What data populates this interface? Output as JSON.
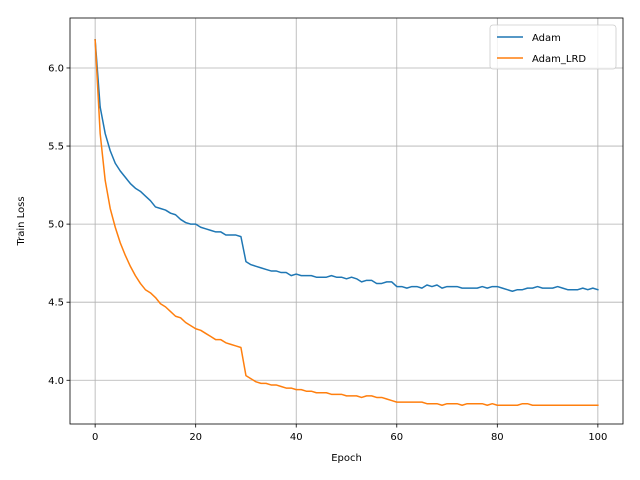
{
  "chart_data": {
    "type": "line",
    "title": "",
    "xlabel": "Epoch",
    "ylabel": "Train Loss",
    "xlim": [
      -5,
      105
    ],
    "ylim": [
      3.72,
      6.32
    ],
    "xticks": [
      0,
      20,
      40,
      60,
      80,
      100
    ],
    "xtick_labels": [
      "0",
      "20",
      "40",
      "60",
      "80",
      "100"
    ],
    "yticks": [
      4.0,
      4.5,
      5.0,
      5.5,
      6.0
    ],
    "ytick_labels": [
      "4.0",
      "4.5",
      "5.0",
      "5.5",
      "6.0"
    ],
    "grid": true,
    "legend_position": "top-right",
    "series": [
      {
        "name": "Adam",
        "color": "#1f77b4",
        "x": [
          0,
          1,
          2,
          3,
          4,
          5,
          6,
          7,
          8,
          9,
          10,
          11,
          12,
          13,
          14,
          15,
          16,
          17,
          18,
          19,
          20,
          21,
          22,
          23,
          24,
          25,
          26,
          27,
          28,
          29,
          30,
          31,
          32,
          33,
          34,
          35,
          36,
          37,
          38,
          39,
          40,
          41,
          42,
          43,
          44,
          45,
          46,
          47,
          48,
          49,
          50,
          51,
          52,
          53,
          54,
          55,
          56,
          57,
          58,
          59,
          60,
          61,
          62,
          63,
          64,
          65,
          66,
          67,
          68,
          69,
          70,
          71,
          72,
          73,
          74,
          75,
          76,
          77,
          78,
          79,
          80,
          81,
          82,
          83,
          84,
          85,
          86,
          87,
          88,
          89,
          90,
          91,
          92,
          93,
          94,
          95,
          96,
          97,
          98,
          99,
          100
        ],
        "y": [
          6.18,
          5.75,
          5.58,
          5.47,
          5.39,
          5.34,
          5.3,
          5.26,
          5.23,
          5.21,
          5.18,
          5.15,
          5.11,
          5.1,
          5.09,
          5.07,
          5.06,
          5.03,
          5.01,
          5.0,
          5.0,
          4.98,
          4.97,
          4.96,
          4.95,
          4.95,
          4.93,
          4.93,
          4.93,
          4.92,
          4.76,
          4.74,
          4.73,
          4.72,
          4.71,
          4.7,
          4.7,
          4.69,
          4.69,
          4.67,
          4.68,
          4.67,
          4.67,
          4.67,
          4.66,
          4.66,
          4.66,
          4.67,
          4.66,
          4.66,
          4.65,
          4.66,
          4.65,
          4.63,
          4.64,
          4.64,
          4.62,
          4.62,
          4.63,
          4.63,
          4.6,
          4.6,
          4.59,
          4.6,
          4.6,
          4.59,
          4.61,
          4.6,
          4.61,
          4.59,
          4.6,
          4.6,
          4.6,
          4.59,
          4.59,
          4.59,
          4.59,
          4.6,
          4.59,
          4.6,
          4.6,
          4.59,
          4.58,
          4.57,
          4.58,
          4.58,
          4.59,
          4.59,
          4.6,
          4.59,
          4.59,
          4.59,
          4.6,
          4.59,
          4.58,
          4.58,
          4.58,
          4.59,
          4.58,
          4.59,
          4.58
        ]
      },
      {
        "name": "Adam_LRD",
        "color": "#ff7f0e",
        "x": [
          0,
          1,
          2,
          3,
          4,
          5,
          6,
          7,
          8,
          9,
          10,
          11,
          12,
          13,
          14,
          15,
          16,
          17,
          18,
          19,
          20,
          21,
          22,
          23,
          24,
          25,
          26,
          27,
          28,
          29,
          30,
          31,
          32,
          33,
          34,
          35,
          36,
          37,
          38,
          39,
          40,
          41,
          42,
          43,
          44,
          45,
          46,
          47,
          48,
          49,
          50,
          51,
          52,
          53,
          54,
          55,
          56,
          57,
          58,
          59,
          60,
          61,
          62,
          63,
          64,
          65,
          66,
          67,
          68,
          69,
          70,
          71,
          72,
          73,
          74,
          75,
          76,
          77,
          78,
          79,
          80,
          81,
          82,
          83,
          84,
          85,
          86,
          87,
          88,
          89,
          90,
          91,
          92,
          93,
          94,
          95,
          96,
          97,
          98,
          99,
          100
        ],
        "y": [
          6.18,
          5.58,
          5.28,
          5.1,
          4.98,
          4.88,
          4.8,
          4.73,
          4.67,
          4.62,
          4.58,
          4.56,
          4.53,
          4.49,
          4.47,
          4.44,
          4.41,
          4.4,
          4.37,
          4.35,
          4.33,
          4.32,
          4.3,
          4.28,
          4.26,
          4.26,
          4.24,
          4.23,
          4.22,
          4.21,
          4.03,
          4.01,
          3.99,
          3.98,
          3.98,
          3.97,
          3.97,
          3.96,
          3.95,
          3.95,
          3.94,
          3.94,
          3.93,
          3.93,
          3.92,
          3.92,
          3.92,
          3.91,
          3.91,
          3.91,
          3.9,
          3.9,
          3.9,
          3.89,
          3.9,
          3.9,
          3.89,
          3.89,
          3.88,
          3.87,
          3.86,
          3.86,
          3.86,
          3.86,
          3.86,
          3.86,
          3.85,
          3.85,
          3.85,
          3.84,
          3.85,
          3.85,
          3.85,
          3.84,
          3.85,
          3.85,
          3.85,
          3.85,
          3.84,
          3.85,
          3.84,
          3.84,
          3.84,
          3.84,
          3.84,
          3.85,
          3.85,
          3.84,
          3.84,
          3.84,
          3.84,
          3.84,
          3.84,
          3.84,
          3.84,
          3.84,
          3.84,
          3.84,
          3.84,
          3.84,
          3.84
        ]
      }
    ]
  }
}
